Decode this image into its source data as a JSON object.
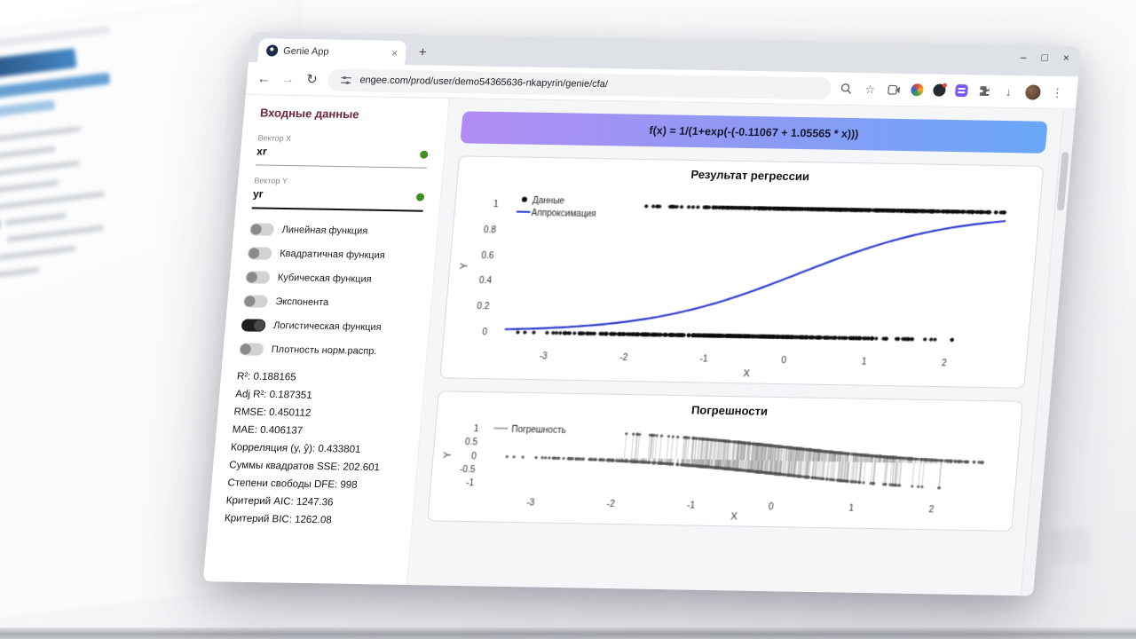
{
  "browser": {
    "tab_title": "Genie App",
    "url": "engee.com/prod/user/demo54365636-nkapyrin/genie/cfa/",
    "icons": {
      "back": "←",
      "forward": "→",
      "reload": "↻",
      "close": "×",
      "minimize": "–",
      "maximize": "□",
      "add_tab": "+",
      "star": "☆",
      "download": "↓",
      "menu": "⋮"
    }
  },
  "sidebar": {
    "title": "Входные данные",
    "fields": [
      {
        "label": "Вектор X",
        "value": "xr",
        "status_color": "#3e9021"
      },
      {
        "label": "Вектор Y",
        "value": "yr",
        "status_color": "#3e9021"
      }
    ],
    "toggles": [
      {
        "name": "linear",
        "label": "Линейная функция",
        "on": false
      },
      {
        "name": "quadratic",
        "label": "Квадратичная функция",
        "on": false
      },
      {
        "name": "cubic",
        "label": "Кубическая функция",
        "on": false
      },
      {
        "name": "exponential",
        "label": "Экспонента",
        "on": false
      },
      {
        "name": "logistic",
        "label": "Логистическая функция",
        "on": true
      },
      {
        "name": "normal-density",
        "label": "Плотность норм.распр.",
        "on": false
      }
    ],
    "stats": [
      "R²: 0.188165",
      "Adj R²: 0.187351",
      "RMSE: 0.450112",
      "MAE: 0.406137",
      "Корреляция (y, ŷ): 0.433801",
      "Суммы квадратов SSE: 202.601",
      "Степени свободы DFE: 998",
      "Критерий AIC: 1247.36",
      "Критерий BIC: 1262.08"
    ]
  },
  "main": {
    "formula": "f(x) = 1/(1+exp(-(-0.11067 + 1.05565 * x)))",
    "banner_gradient": [
      "#b18cf2",
      "#6aa7f7"
    ]
  },
  "chart_data": [
    {
      "type": "scatter+line",
      "title": "Результат регрессии",
      "xlabel": "X",
      "ylabel": "Y",
      "xlim": [
        -3.65,
        2.75
      ],
      "ylim": [
        -0.1,
        1.12
      ],
      "xticks": [
        -3,
        -2,
        -1,
        0,
        1,
        2
      ],
      "yticks": [
        0,
        0.2,
        0.4,
        0.6,
        0.8,
        1
      ],
      "grid": false,
      "legend": [
        {
          "label": "Данные",
          "marker": "point",
          "color": "#0d0d0d"
        },
        {
          "label": "Аппроксимация",
          "marker": "line",
          "color": "#2a36cf"
        }
      ],
      "model": {
        "formula": "f(x) = 1/(1+exp(-(-0.11067 + 1.05565 * x)))",
        "b0": -0.11067,
        "b1": 1.05565
      },
      "curve_x_range": [
        -3.5,
        2.6
      ],
      "clusters": [
        {
          "y": 1,
          "x_mean": 0.6,
          "x_sd": 1.05,
          "x_min": -1.9,
          "x_max": 2.6,
          "count": 500
        },
        {
          "y": 0,
          "x_mean": -0.6,
          "x_sd": 1.05,
          "x_min": -3.5,
          "x_max": 2.5,
          "count": 500
        }
      ],
      "n_total": 1000,
      "seed": 11,
      "point_color": "#0d0d0d",
      "line_color": "#2a36cf"
    },
    {
      "type": "stem",
      "title": "Погрешности",
      "xlabel": "X",
      "ylabel": "Y",
      "xlim": [
        -3.65,
        2.75
      ],
      "ylim": [
        -1.3,
        1.3
      ],
      "xticks": [
        -3,
        -2,
        -1,
        0,
        1,
        2
      ],
      "yticks": [
        1,
        0.5,
        0,
        -0.5,
        -1
      ],
      "grid": false,
      "legend": [
        {
          "label": "Погрешность",
          "marker": "line",
          "color": "#8f8f8f"
        }
      ],
      "derived": "residual = y - f(x), same points as chart 0",
      "stem_color": "#8f8f8f",
      "dot_color": "#565656"
    }
  ]
}
